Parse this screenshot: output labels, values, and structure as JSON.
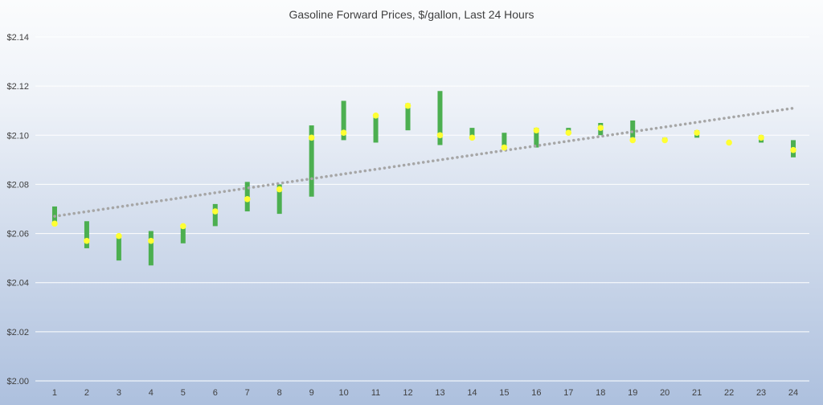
{
  "chart_data": {
    "type": "candlestick",
    "title": "Gasoline Forward Prices, $/gallon, Last 24 Hours",
    "xlabel": "",
    "ylabel": "",
    "categories": [
      "1",
      "2",
      "3",
      "4",
      "5",
      "6",
      "7",
      "8",
      "9",
      "10",
      "11",
      "12",
      "13",
      "14",
      "15",
      "16",
      "17",
      "18",
      "19",
      "20",
      "21",
      "22",
      "23",
      "24"
    ],
    "ylim": [
      2.0,
      2.14
    ],
    "y_ticks": [
      "$2.00",
      "$2.02",
      "$2.04",
      "$2.06",
      "$2.08",
      "$2.10",
      "$2.12",
      "$2.14"
    ],
    "grid": true,
    "bar_low": [
      2.064,
      2.054,
      2.049,
      2.047,
      2.056,
      2.063,
      2.069,
      2.068,
      2.075,
      2.098,
      2.097,
      2.102,
      2.096,
      2.099,
      2.095,
      2.095,
      2.101,
      2.1,
      2.099,
      2.098,
      2.099,
      2.097,
      2.097,
      2.091
    ],
    "bar_high": [
      2.071,
      2.065,
      2.059,
      2.061,
      2.063,
      2.072,
      2.081,
      2.08,
      2.104,
      2.114,
      2.108,
      2.113,
      2.118,
      2.103,
      2.101,
      2.103,
      2.103,
      2.105,
      2.106,
      2.099,
      2.102,
      2.097,
      2.1,
      2.098
    ],
    "points": [
      2.064,
      2.057,
      2.059,
      2.057,
      2.063,
      2.069,
      2.074,
      2.078,
      2.099,
      2.101,
      2.108,
      2.112,
      2.1,
      2.099,
      2.095,
      2.102,
      2.101,
      2.103,
      2.098,
      2.098,
      2.101,
      2.097,
      2.099,
      2.094
    ],
    "trendline": {
      "type": "linear",
      "start": 2.067,
      "end": 2.111
    },
    "colors": {
      "bar": "#4caf50",
      "point": "#ffff33",
      "trend": "#a6a6a6",
      "grid": "#ffffff",
      "text": "#404040"
    }
  }
}
